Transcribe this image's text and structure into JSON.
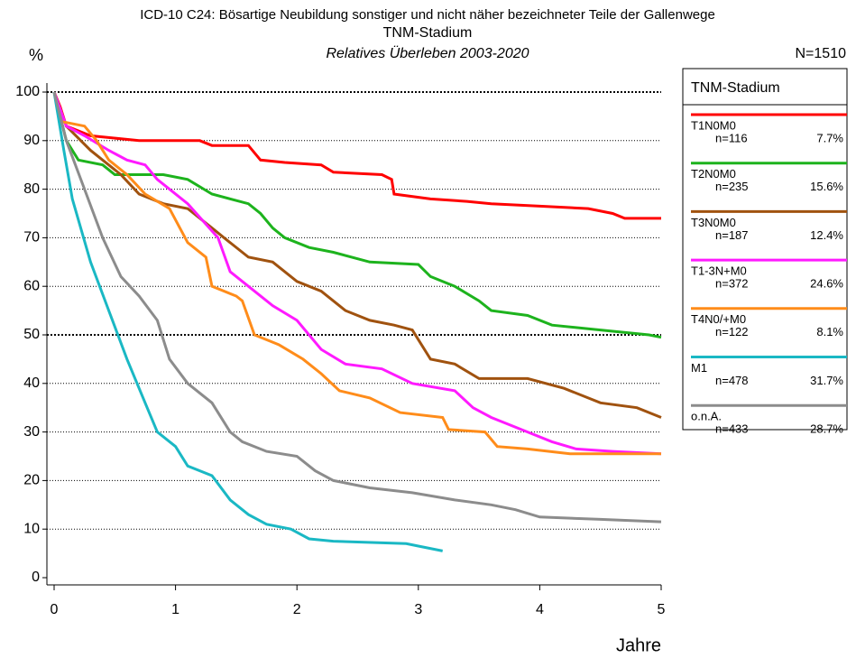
{
  "chart_data": {
    "type": "line",
    "title": "ICD-10 C24: Bösartige Neubildung sonstiger und nicht näher bezeichneter Teile der Gallenwege",
    "title2": "TNM-Stadium",
    "subtitle": "Relatives Überleben 2003-2020",
    "total": "N=1510",
    "y_label": "%",
    "x_label": "Jahre",
    "legend_title": "TNM-Stadium",
    "legend": "right",
    "grid": true,
    "major_grid": [
      50,
      100
    ],
    "xlim": [
      0,
      5
    ],
    "xticks": [
      0,
      1,
      2,
      3,
      4,
      5
    ],
    "ylim": [
      0,
      100
    ],
    "yticks": [
      0,
      10,
      20,
      30,
      40,
      50,
      60,
      70,
      80,
      90,
      100
    ],
    "series": [
      {
        "name": "T1N0M0",
        "n_label": "n=116",
        "share_label": "7.7%",
        "color": "#ff0000",
        "x": [
          0,
          0.05,
          0.1,
          0.3,
          0.7,
          1.2,
          1.3,
          1.6,
          1.7,
          1.9,
          2.2,
          2.3,
          2.7,
          2.78,
          2.8,
          3.1,
          3.4,
          3.6,
          4.0,
          4.4,
          4.6,
          4.7,
          5.0
        ],
        "values": [
          100,
          97,
          93,
          91,
          90,
          90,
          89,
          89,
          86,
          85.5,
          85,
          83.5,
          83,
          82,
          79,
          78,
          77.5,
          77,
          76.5,
          76,
          75,
          74,
          74
        ]
      },
      {
        "name": "T2N0M0",
        "n_label": "n=235",
        "share_label": "15.6%",
        "color": "#1db31d",
        "x": [
          0,
          0.1,
          0.2,
          0.4,
          0.5,
          0.9,
          1.1,
          1.3,
          1.6,
          1.7,
          1.8,
          1.9,
          2.1,
          2.3,
          2.6,
          3.0,
          3.1,
          3.3,
          3.5,
          3.6,
          3.9,
          4.1,
          4.5,
          4.9,
          5.0
        ],
        "values": [
          100,
          90,
          86,
          85,
          83,
          83,
          82,
          79,
          77,
          75,
          72,
          70,
          68,
          67,
          65,
          64.5,
          62,
          60,
          57,
          55,
          54,
          52,
          51,
          50,
          49.5
        ]
      },
      {
        "name": "T3N0M0",
        "n_label": "n=187",
        "share_label": "12.4%",
        "color": "#a0520f",
        "x": [
          0,
          0.1,
          0.3,
          0.4,
          0.55,
          0.7,
          0.9,
          1.1,
          1.3,
          1.4,
          1.6,
          1.8,
          2.0,
          2.2,
          2.4,
          2.6,
          2.8,
          2.95,
          3.1,
          3.3,
          3.5,
          3.9,
          4.2,
          4.5,
          4.8,
          5.0
        ],
        "values": [
          100,
          93,
          88,
          86,
          83,
          79,
          77,
          76,
          72,
          70,
          66,
          65,
          61,
          59,
          55,
          53,
          52,
          51,
          45,
          44,
          41,
          41,
          39,
          36,
          35,
          33
        ]
      },
      {
        "name": "T1-3N+M0",
        "n_label": "n=372",
        "share_label": "24.6%",
        "color": "#ff1aff",
        "x": [
          0,
          0.1,
          0.25,
          0.45,
          0.6,
          0.75,
          0.85,
          1.1,
          1.35,
          1.45,
          1.6,
          1.8,
          2.0,
          2.2,
          2.4,
          2.7,
          2.95,
          3.3,
          3.45,
          3.6,
          3.9,
          4.1,
          4.3,
          4.6,
          5.0
        ],
        "values": [
          100,
          93,
          91,
          88,
          86,
          85,
          82,
          77,
          70,
          63,
          60,
          56,
          53,
          47,
          44,
          43,
          40,
          38.5,
          35,
          33,
          30,
          28,
          26.5,
          26,
          25.5
        ]
      },
      {
        "name": "T4N0/+M0",
        "n_label": "n=122",
        "share_label": "8.1%",
        "color": "#ff8c1a",
        "x": [
          0,
          0.05,
          0.25,
          0.35,
          0.45,
          0.6,
          0.75,
          0.95,
          1.1,
          1.25,
          1.3,
          1.5,
          1.55,
          1.65,
          1.85,
          2.05,
          2.2,
          2.35,
          2.6,
          2.85,
          3.2,
          3.25,
          3.55,
          3.65,
          3.9,
          4.25,
          5.0
        ],
        "values": [
          100,
          94,
          93,
          90,
          86,
          83,
          79,
          76,
          69,
          66,
          60,
          58,
          57,
          50,
          48,
          45,
          42,
          38.5,
          37,
          34,
          33,
          30.5,
          30,
          27,
          26.5,
          25.5,
          25.5
        ]
      },
      {
        "name": "M1",
        "n_label": "n=478",
        "share_label": "31.7%",
        "color": "#1ab8c4",
        "x": [
          0,
          0.08,
          0.15,
          0.3,
          0.45,
          0.6,
          0.75,
          0.85,
          1.0,
          1.1,
          1.3,
          1.45,
          1.6,
          1.75,
          1.95,
          2.1,
          2.3,
          2.9,
          3.0,
          3.2
        ],
        "values": [
          100,
          88,
          78,
          65,
          55,
          45,
          36,
          30,
          27,
          23,
          21,
          16,
          13,
          11,
          10,
          8,
          7.5,
          7,
          6.5,
          5.5
        ]
      },
      {
        "name": "o.n.A.",
        "n_label": "n=433",
        "share_label": "28.7%",
        "color": "#8c8c8c",
        "x": [
          0,
          0.1,
          0.25,
          0.4,
          0.55,
          0.7,
          0.85,
          0.95,
          1.1,
          1.3,
          1.45,
          1.55,
          1.75,
          2.0,
          2.15,
          2.3,
          2.6,
          2.95,
          3.3,
          3.6,
          3.8,
          4.0,
          4.5,
          5.0
        ],
        "values": [
          100,
          90,
          80,
          70,
          62,
          58,
          53,
          45,
          40,
          36,
          30,
          28,
          26,
          25,
          22,
          20,
          18.5,
          17.5,
          16,
          15,
          14,
          12.5,
          12,
          11.5
        ]
      }
    ]
  }
}
